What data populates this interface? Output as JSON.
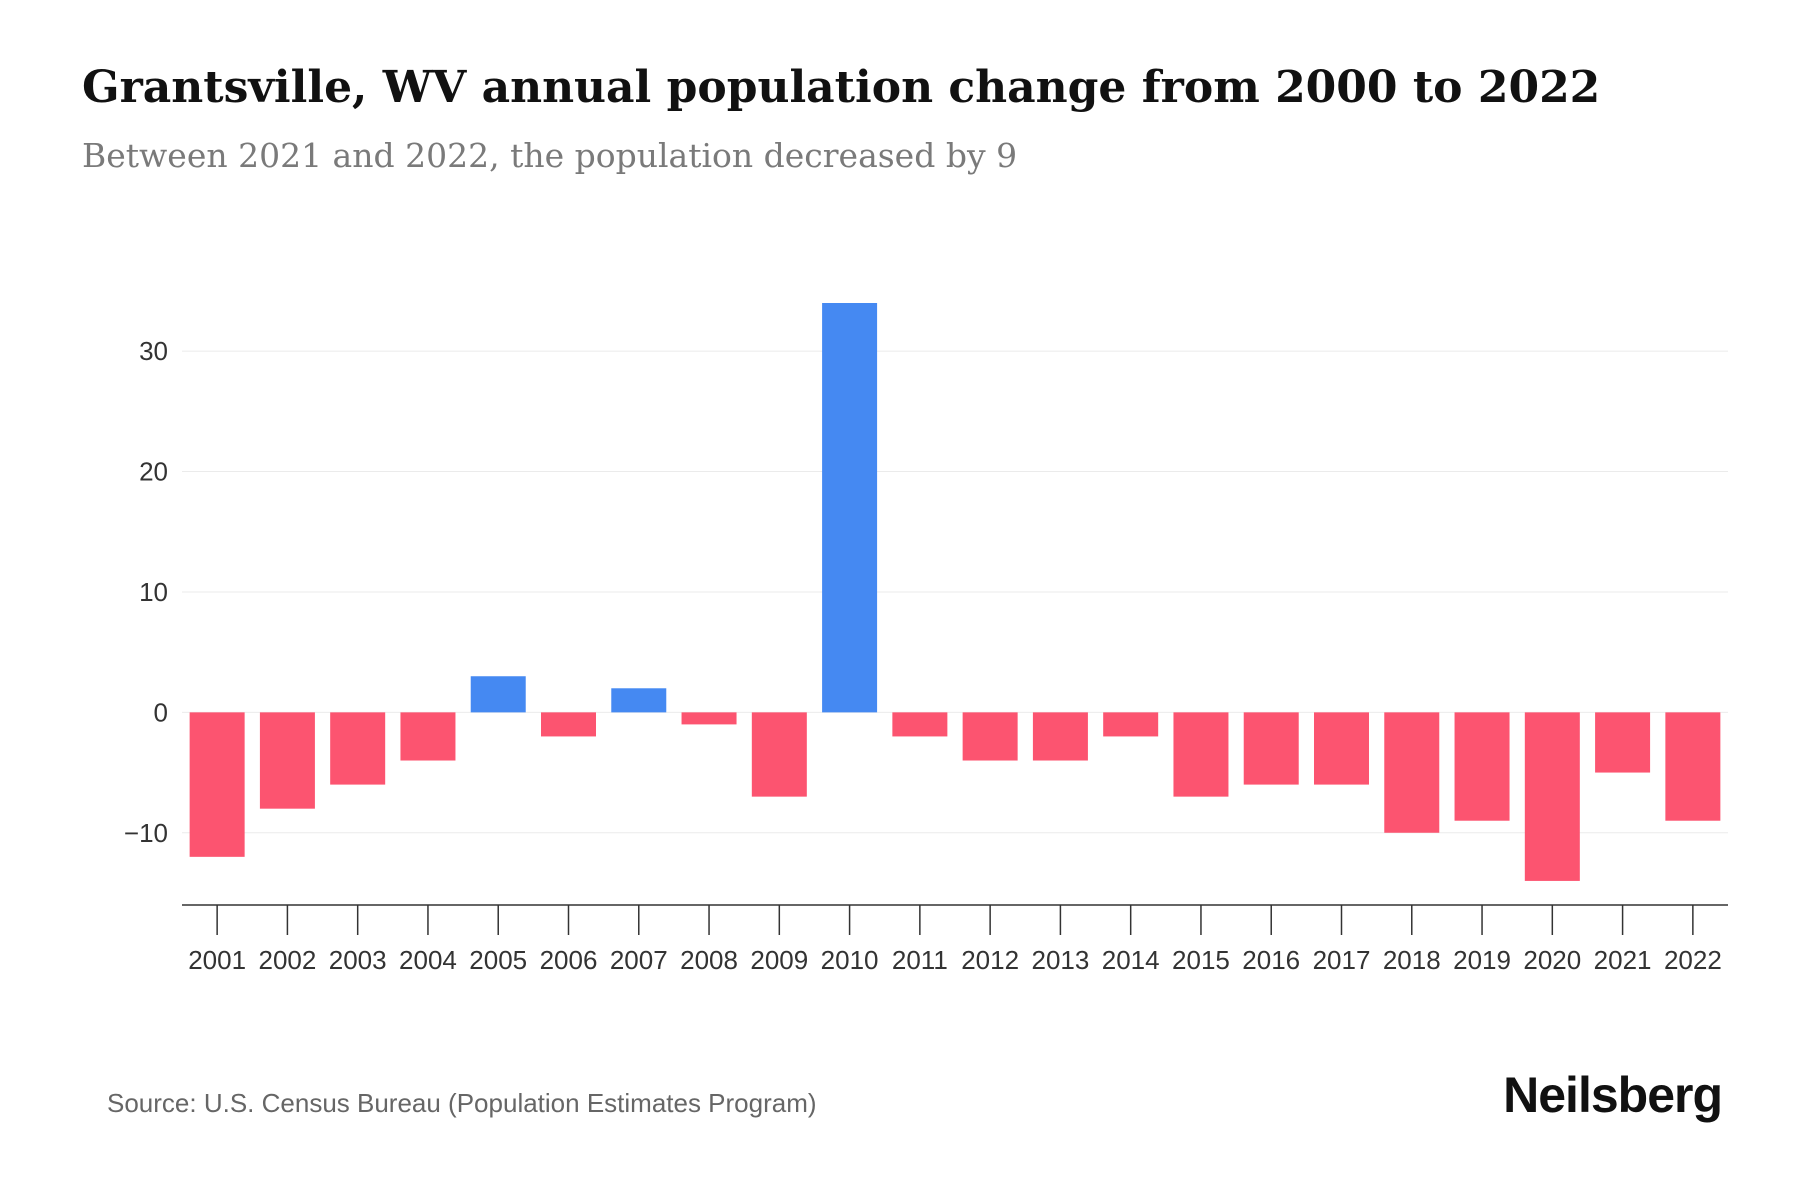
{
  "chart_data": {
    "type": "bar",
    "title": "Grantsville, WV annual population change from 2000 to 2022",
    "subtitle": "Between 2021 and 2022, the population decreased by 9",
    "xlabel": "",
    "ylabel": "",
    "ylim": [
      -16,
      34
    ],
    "yticks": [
      -10,
      0,
      10,
      20,
      30
    ],
    "ytick_labels": [
      "−10",
      "0",
      "10",
      "20",
      "30"
    ],
    "grid": true,
    "categories": [
      "2001",
      "2002",
      "2003",
      "2004",
      "2005",
      "2006",
      "2007",
      "2008",
      "2009",
      "2010",
      "2011",
      "2012",
      "2013",
      "2014",
      "2015",
      "2016",
      "2017",
      "2018",
      "2019",
      "2020",
      "2021",
      "2022"
    ],
    "values": [
      -12,
      -8,
      -6,
      -4,
      3,
      -2,
      2,
      -1,
      -7,
      34,
      -2,
      -4,
      -4,
      -2,
      -7,
      -6,
      -6,
      -10,
      -9,
      -14,
      -5,
      -9
    ],
    "colors": {
      "positive": "#4589f2",
      "negative": "#fc5470",
      "grid": "#ebebeb",
      "axis": "#333333"
    }
  },
  "footer": {
    "source": "Source: U.S. Census Bureau (Population Estimates Program)",
    "brand": "Neilsberg"
  }
}
